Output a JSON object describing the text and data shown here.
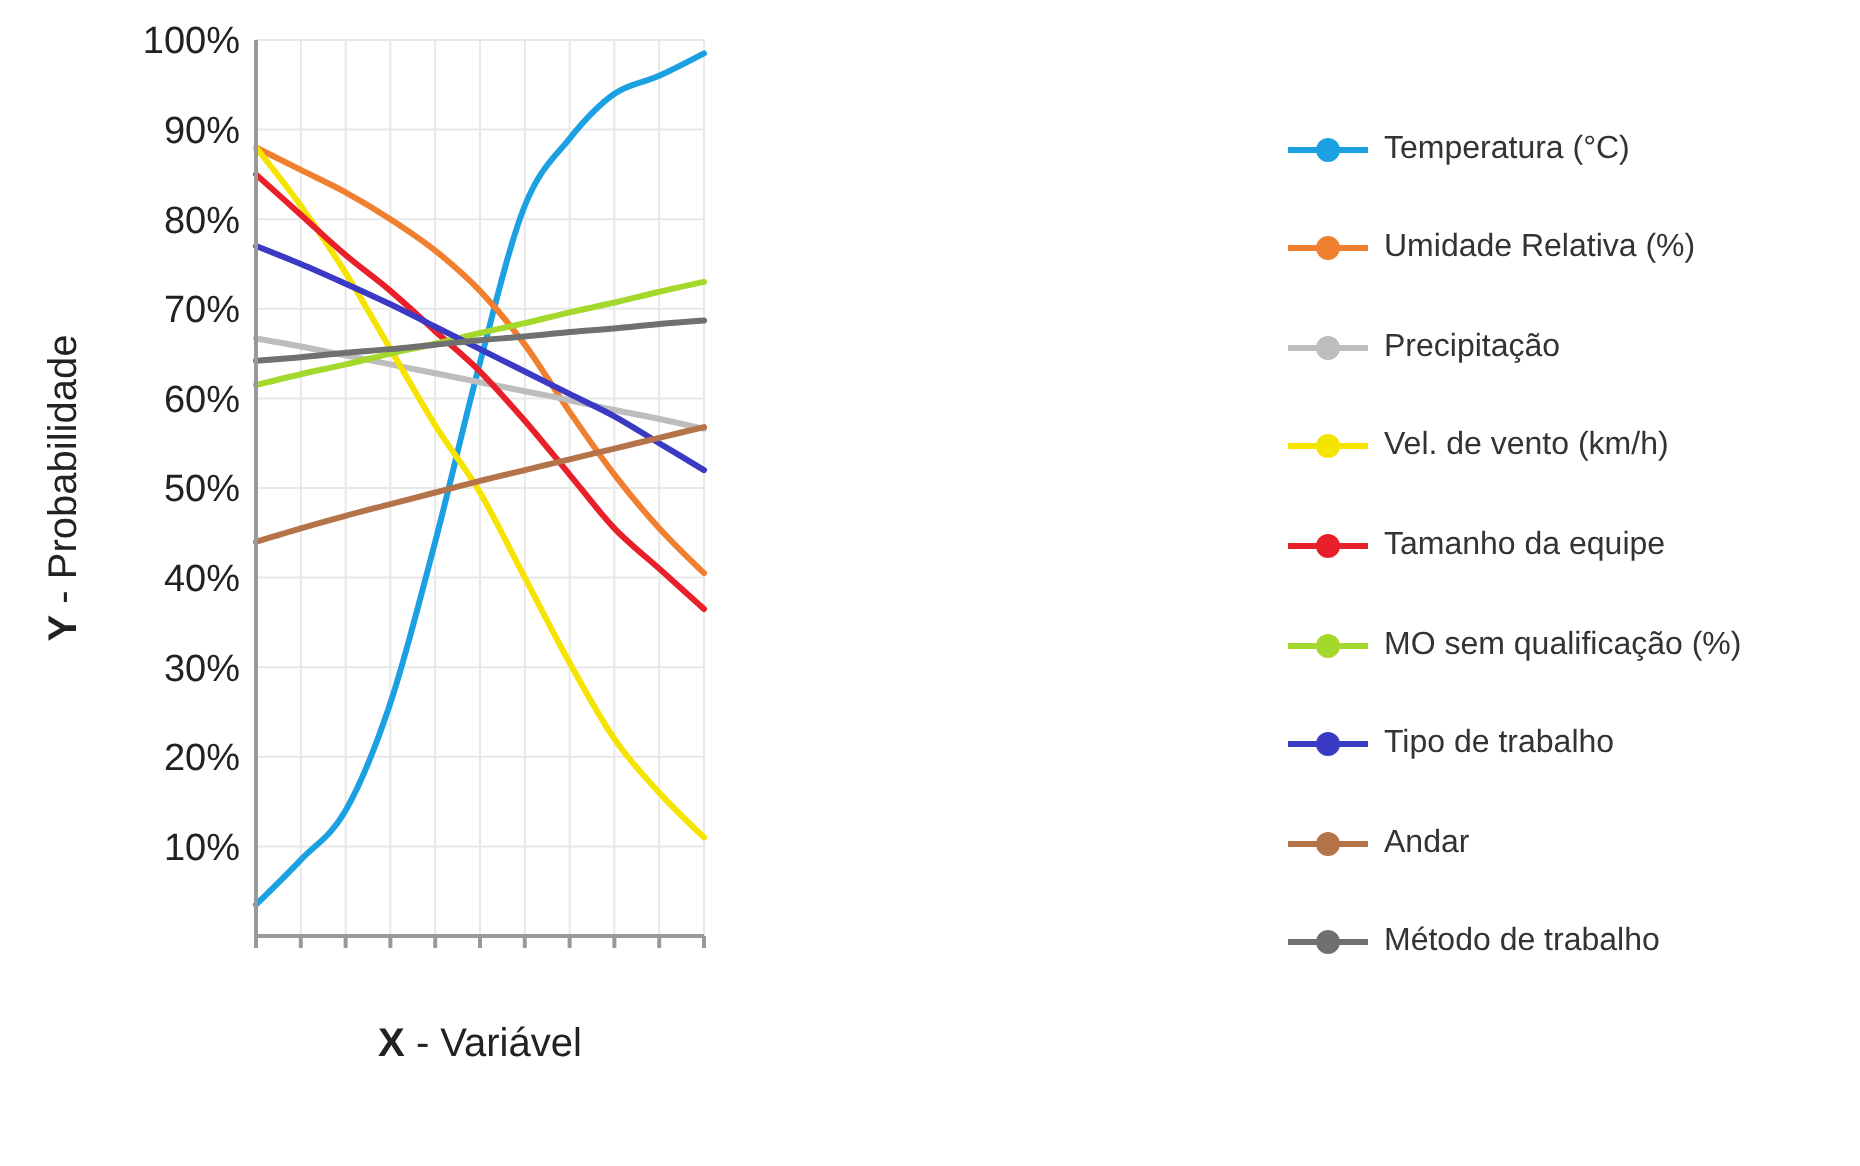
{
  "chart_data": {
    "type": "line",
    "xlabel": "X - Variável",
    "ylabel": "Y - Probabilidade",
    "categories": [
      null,
      null,
      null,
      null,
      null,
      null,
      null,
      null,
      null,
      null,
      null
    ],
    "ylim": [
      0,
      100
    ],
    "yticks": [
      {
        "value": 10,
        "label": "10%"
      },
      {
        "value": 20,
        "label": "20%"
      },
      {
        "value": 30,
        "label": "30%"
      },
      {
        "value": 40,
        "label": "40%"
      },
      {
        "value": 50,
        "label": "50%"
      },
      {
        "value": 60,
        "label": "60%"
      },
      {
        "value": 70,
        "label": "70%"
      },
      {
        "value": 80,
        "label": "80%"
      },
      {
        "value": 90,
        "label": "90%"
      },
      {
        "value": 100,
        "label": "100%"
      }
    ],
    "grid": true,
    "legend": "right",
    "marker": "none",
    "line_style": "solid",
    "series": [
      {
        "name": "Temperatura (°C)",
        "color": "#1ba1e2",
        "values": [
          3.5,
          8.5,
          14,
          26,
          44,
          64,
          81.5,
          89,
          94,
          96,
          98.5
        ]
      },
      {
        "name": "Umidade Relativa (%)",
        "color": "#f08030",
        "values": [
          88,
          85.5,
          83,
          80,
          76.5,
          72,
          66,
          58.5,
          51.5,
          45.5,
          40.5
        ]
      },
      {
        "name": "Precipitação",
        "color": "#bdbdbd",
        "values": [
          66.7,
          65.8,
          64.8,
          63.8,
          62.8,
          61.8,
          60.8,
          59.8,
          58.7,
          57.7,
          56.6
        ]
      },
      {
        "name": "Vel. de vento (km/h)",
        "color": "#f5e400",
        "values": [
          88,
          81.5,
          74,
          65.5,
          57,
          49.5,
          40,
          30.5,
          22,
          16,
          11
        ]
      },
      {
        "name": "Tamanho da equipe",
        "color": "#e8202a",
        "values": [
          85,
          80.5,
          76,
          72,
          67.5,
          63,
          57.5,
          51.5,
          45.5,
          41,
          36.5
        ]
      },
      {
        "name": "MO sem qualificação (%)",
        "color": "#a4d82c",
        "values": [
          61.5,
          62.7,
          63.8,
          65,
          66.1,
          67.3,
          68.4,
          69.6,
          70.7,
          71.9,
          73
        ]
      },
      {
        "name": "Tipo de trabalho",
        "color": "#3a3ac4",
        "values": [
          77,
          75,
          72.8,
          70.5,
          68,
          65.5,
          63,
          60.5,
          58,
          55,
          52
        ]
      },
      {
        "name": "Andar",
        "color": "#b5734a",
        "values": [
          44,
          45.5,
          46.9,
          48.2,
          49.5,
          50.8,
          52,
          53.2,
          54.4,
          55.6,
          56.8
        ]
      },
      {
        "name": "Método de trabalho",
        "color": "#707070",
        "values": [
          64.2,
          64.6,
          65.1,
          65.5,
          66,
          66.5,
          66.9,
          67.4,
          67.8,
          68.3,
          68.7
        ]
      }
    ]
  }
}
